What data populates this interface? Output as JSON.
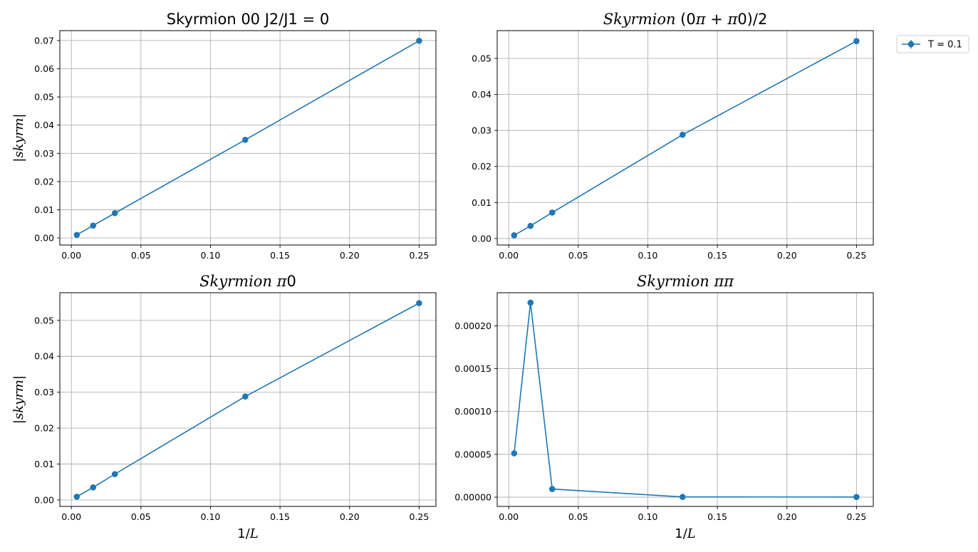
{
  "colors": {
    "series": "#1f77b4",
    "grid": "#b0b0b0",
    "axes": "#000000"
  },
  "legend": {
    "label": "T = 0.1",
    "placement": "outside-right-top"
  },
  "chart_data": [
    {
      "type": "line",
      "title": "Skyrmion 00 J2/J1 = 0",
      "xlabel": "",
      "ylabel": "|skyrm|",
      "grid": true,
      "xlim": [
        -0.0083,
        0.2621
      ],
      "ylim": [
        -0.0025,
        0.0735
      ],
      "xticks": [
        "0.00",
        "0.05",
        "0.10",
        "0.15",
        "0.20",
        "0.25"
      ],
      "yticks": [
        "0.00",
        "0.01",
        "0.02",
        "0.03",
        "0.04",
        "0.05",
        "0.06",
        "0.07"
      ],
      "series": [
        {
          "name": "T = 0.1",
          "x": [
            0.00390625,
            0.015625,
            0.03125,
            0.125,
            0.25
          ],
          "y": [
            0.0011,
            0.0044,
            0.0088,
            0.0348,
            0.0699
          ]
        }
      ]
    },
    {
      "type": "line",
      "title": "Skyrmion (0π + π0)/2",
      "xlabel": "",
      "ylabel": "",
      "grid": true,
      "xlim": [
        -0.0083,
        0.2621
      ],
      "ylim": [
        -0.0018,
        0.0577
      ],
      "xticks": [
        "0.00",
        "0.05",
        "0.10",
        "0.15",
        "0.20",
        "0.25"
      ],
      "yticks": [
        "0.00",
        "0.01",
        "0.02",
        "0.03",
        "0.04",
        "0.05"
      ],
      "series": [
        {
          "name": "T = 0.1",
          "x": [
            0.00390625,
            0.015625,
            0.03125,
            0.125,
            0.25
          ],
          "y": [
            0.0009,
            0.0035,
            0.0072,
            0.0288,
            0.0548
          ]
        }
      ]
    },
    {
      "type": "line",
      "title": "Skyrmion π0",
      "xlabel": "1/L",
      "ylabel": "|skyrm|",
      "grid": true,
      "xlim": [
        -0.0083,
        0.2621
      ],
      "ylim": [
        -0.0018,
        0.0577
      ],
      "xticks": [
        "0.00",
        "0.05",
        "0.10",
        "0.15",
        "0.20",
        "0.25"
      ],
      "yticks": [
        "0.00",
        "0.01",
        "0.02",
        "0.03",
        "0.04",
        "0.05"
      ],
      "series": [
        {
          "name": "T = 0.1",
          "x": [
            0.00390625,
            0.015625,
            0.03125,
            0.125,
            0.25
          ],
          "y": [
            0.0009,
            0.0035,
            0.0072,
            0.0288,
            0.0548
          ]
        }
      ]
    },
    {
      "type": "line",
      "title": "Skyrmion ππ",
      "xlabel": "1/L",
      "ylabel": "",
      "grid": true,
      "xlim": [
        -0.0083,
        0.2621
      ],
      "ylim": [
        -1.08e-05,
        0.0002386
      ],
      "xticks": [
        "0.00",
        "0.05",
        "0.10",
        "0.15",
        "0.20",
        "0.25"
      ],
      "yticks": [
        "0.00000",
        "0.00005",
        "0.00010",
        "0.00015",
        "0.00020"
      ],
      "series": [
        {
          "name": "T = 0.1",
          "x": [
            0.00390625,
            0.015625,
            0.03125,
            0.125,
            0.25
          ],
          "y": [
            5.12e-05,
            0.000227,
            9.5e-06,
            3e-07,
            2e-07
          ]
        }
      ]
    }
  ]
}
